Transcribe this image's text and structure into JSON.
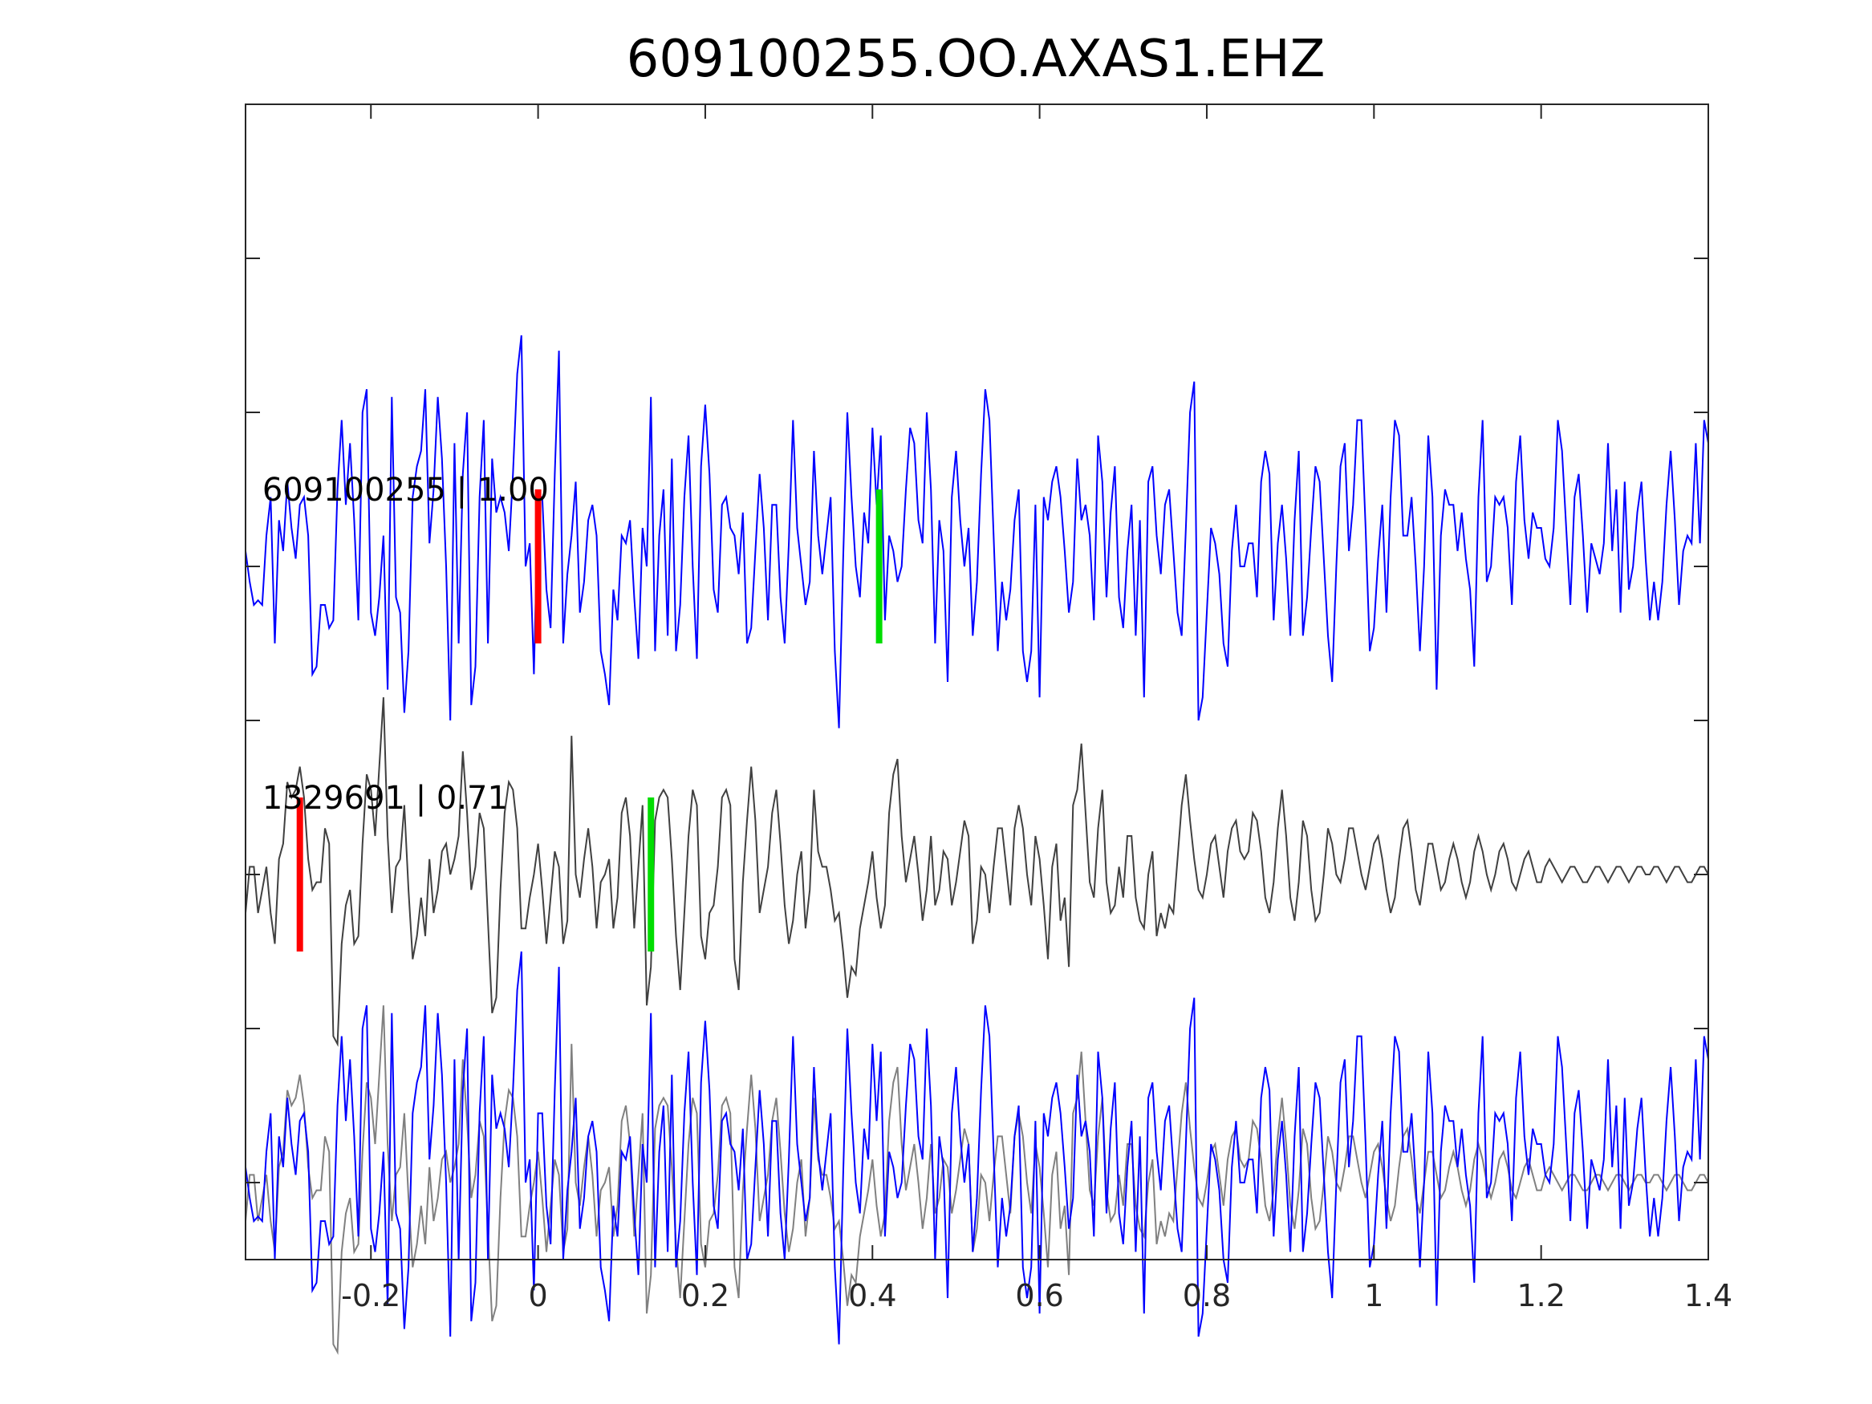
{
  "chart_data": {
    "type": "line",
    "title": "609100255.OO.AXAS1.EHZ",
    "xlabel": "",
    "ylabel": "",
    "xlim": [
      -0.35,
      1.4
    ],
    "ylim": [
      -4.5,
      3
    ],
    "x_ticks": [
      -0.2,
      0,
      0.2,
      0.4,
      0.6,
      0.8,
      1,
      1.2,
      1.4
    ],
    "x_tick_labels": [
      "-0.2",
      "0",
      "0.2",
      "0.4",
      "0.6",
      "0.8",
      "1",
      "1.2",
      "1.4"
    ],
    "y_ticks": [
      -4,
      -3,
      -2,
      -1,
      0,
      1,
      2
    ],
    "grid": false,
    "sample_interval": 0.005,
    "colors": {
      "template": "#0000ff",
      "match": "#404040",
      "overlay_match": "#808080",
      "p_pick": "#ff0000",
      "s_pick": "#00dd00",
      "axes": "#262626"
    },
    "annotations": [
      {
        "text": "609100255 | 1.00",
        "x": -0.33,
        "y": 0.5
      },
      {
        "text": "1329691 | 0.71",
        "x": -0.33,
        "y": -1.5
      }
    ],
    "picks": [
      {
        "trace": "top",
        "phase": "P",
        "x": 0.0,
        "y0": -0.5,
        "y1": 0.5
      },
      {
        "trace": "top",
        "phase": "S",
        "x": 0.408,
        "y0": -0.5,
        "y1": 0.5
      },
      {
        "trace": "middle",
        "phase": "P",
        "x": -0.285,
        "y0": -2.5,
        "y1": -1.5
      },
      {
        "trace": "middle",
        "phase": "S",
        "x": 0.135,
        "y0": -2.5,
        "y1": -1.5
      }
    ],
    "series": [
      {
        "key": "top",
        "offset": 0,
        "x_start": -0.35,
        "values": [
          0.1,
          -0.1,
          -0.25,
          -0.22,
          -0.25,
          0.2,
          0.45,
          -0.5,
          0.3,
          0.1,
          0.55,
          0.25,
          0.05,
          0.4,
          0.45,
          0.2,
          -0.7,
          -0.65,
          -0.25,
          -0.25,
          -0.4,
          -0.35,
          0.5,
          0.95,
          0.4,
          0.8,
          0.3,
          -0.35,
          1.0,
          1.15,
          -0.3,
          -0.45,
          -0.2,
          0.2,
          -0.8,
          1.1,
          -0.2,
          -0.3,
          -0.95,
          -0.55,
          0.45,
          0.65,
          0.75,
          1.15,
          0.15,
          0.5,
          1.1,
          0.7,
          0.0,
          -1.0,
          0.8,
          -0.5,
          0.6,
          1.0,
          -0.9,
          -0.65,
          0.45,
          0.95,
          -0.5,
          0.7,
          0.35,
          0.45,
          0.35,
          0.1,
          0.6,
          1.25,
          1.5,
          0.0,
          0.15,
          -0.7,
          0.45,
          0.45,
          -0.15,
          -0.4,
          0.6,
          1.4,
          -0.5,
          -0.05,
          0.2,
          0.55,
          -0.3,
          -0.1,
          0.3,
          0.4,
          0.2,
          -0.55,
          -0.7,
          -0.9,
          -0.15,
          -0.35,
          0.2,
          0.15,
          0.3,
          -0.2,
          -0.6,
          0.25,
          0.0,
          1.1,
          -0.55,
          0.2,
          0.5,
          -0.45,
          0.7,
          -0.55,
          -0.25,
          0.45,
          0.85,
          0.0,
          -0.6,
          0.65,
          1.05,
          0.6,
          -0.15,
          -0.3,
          0.4,
          0.45,
          0.25,
          0.2,
          -0.05,
          0.35,
          -0.5,
          -0.4,
          0.1,
          0.6,
          0.25,
          -0.35,
          0.4,
          0.4,
          -0.2,
          -0.5,
          0.15,
          0.95,
          0.25,
          0.0,
          -0.25,
          -0.1,
          0.75,
          0.2,
          -0.05,
          0.2,
          0.45,
          -0.55,
          -1.05,
          0.05,
          1.0,
          0.45,
          0.0,
          -0.2,
          0.35,
          0.15,
          0.9,
          0.4,
          0.85,
          -0.35,
          0.2,
          0.1,
          -0.1,
          0.0,
          0.5,
          0.9,
          0.8,
          0.3,
          0.15,
          1.0,
          0.5,
          -0.5,
          0.3,
          0.1,
          -0.75,
          0.45,
          0.75,
          0.3,
          0.0,
          0.25,
          -0.45,
          -0.1,
          0.6,
          1.15,
          0.95,
          0.2,
          -0.55,
          -0.1,
          -0.35,
          -0.15,
          0.3,
          0.5,
          -0.55,
          -0.75,
          -0.55,
          0.4,
          -0.85,
          0.45,
          0.3,
          0.55,
          0.65,
          0.45,
          0.1,
          -0.3,
          -0.1,
          0.7,
          0.3,
          0.4,
          0.2,
          -0.35,
          0.85,
          0.55,
          -0.2,
          0.35,
          0.65,
          -0.2,
          -0.4,
          0.1,
          0.4,
          -0.45,
          0.3,
          -0.85,
          0.55,
          0.65,
          0.2,
          -0.05,
          0.4,
          0.5,
          0.1,
          -0.3,
          -0.45,
          0.25,
          1.0,
          1.2,
          -1.0,
          -0.85,
          -0.3,
          0.25,
          0.15,
          -0.05,
          -0.5,
          -0.65,
          0.1,
          0.4,
          0.0,
          0.0,
          0.15,
          0.15,
          -0.2,
          0.55,
          0.75,
          0.6,
          -0.35,
          0.15,
          0.4,
          0.05,
          -0.45,
          0.3,
          0.75,
          -0.45,
          -0.2,
          0.25,
          0.65,
          0.55,
          0.05,
          -0.45,
          -0.75,
          0.0,
          0.65,
          0.8,
          0.1,
          0.4,
          0.95,
          0.95,
          0.25,
          -0.55,
          -0.4,
          0.05,
          0.4,
          -0.3,
          0.45,
          0.95,
          0.85,
          0.2,
          0.2,
          0.45,
          0.0,
          -0.55,
          0.0,
          0.85,
          0.45,
          -0.8,
          0.2,
          0.5,
          0.4,
          0.4,
          0.1,
          0.35,
          0.05,
          -0.15,
          -0.65,
          0.45,
          0.95,
          -0.1,
          0.0,
          0.45,
          0.4,
          0.45,
          0.25,
          -0.25,
          0.55,
          0.85,
          0.3,
          0.05,
          0.35,
          0.25,
          0.25,
          0.05,
          0.0,
          0.25,
          0.95,
          0.75,
          0.25,
          -0.25,
          0.45,
          0.6,
          0.2,
          -0.3,
          0.15,
          0.05,
          -0.05,
          0.15,
          0.8,
          0.1,
          0.5,
          -0.3,
          0.55,
          -0.15,
          0.0,
          0.35,
          0.55,
          0.05,
          -0.35,
          -0.1,
          -0.35,
          -0.1,
          0.4,
          0.75,
          0.3,
          -0.25,
          0.1,
          0.2,
          0.15,
          0.8,
          0.15,
          0.95,
          0.8,
          0.3,
          -0.1,
          0.05,
          0.5,
          0.7,
          0.7,
          0.45,
          0.55,
          0.0,
          -0.1,
          0.1,
          0.05,
          -0.15,
          0.4,
          0.55,
          0.05,
          0.0,
          0.1,
          -0.35,
          0.3,
          0.3,
          0.3,
          0.3,
          0.1,
          -0.2,
          0.0,
          0.05,
          0.15,
          0.35,
          0.1,
          0.5
        ]
      },
      {
        "key": "middle",
        "offset": -2,
        "x_start": -0.35,
        "values": [
          -0.25,
          0.05,
          0.05,
          -0.25,
          -0.1,
          0.05,
          -0.25,
          -0.45,
          0.1,
          0.2,
          0.6,
          0.5,
          0.55,
          0.7,
          0.5,
          0.1,
          -0.1,
          -0.05,
          -0.05,
          0.3,
          0.2,
          -1.05,
          -1.1,
          -0.45,
          -0.2,
          -0.1,
          -0.45,
          -0.4,
          0.2,
          0.65,
          0.55,
          0.25,
          0.7,
          1.15,
          0.25,
          -0.25,
          0.05,
          0.1,
          0.45,
          -0.1,
          -0.55,
          -0.4,
          -0.15,
          -0.4,
          0.1,
          -0.25,
          -0.1,
          0.15,
          0.2,
          0.0,
          0.1,
          0.25,
          0.8,
          0.4,
          -0.1,
          0.05,
          0.4,
          0.3,
          -0.3,
          -0.9,
          -0.8,
          -0.1,
          0.4,
          0.6,
          0.55,
          0.3,
          -0.35,
          -0.35,
          -0.15,
          0.0,
          0.2,
          -0.1,
          -0.45,
          -0.15,
          0.15,
          0.05,
          -0.45,
          -0.3,
          0.9,
          0.0,
          -0.15,
          0.1,
          0.3,
          0.05,
          -0.35,
          -0.05,
          0.0,
          0.1,
          -0.35,
          -0.15,
          0.4,
          0.5,
          0.25,
          -0.35,
          0.05,
          0.45,
          -0.85,
          -0.6,
          0.35,
          0.5,
          0.55,
          0.5,
          0.1,
          -0.4,
          -0.75,
          -0.25,
          0.25,
          0.55,
          0.45,
          -0.4,
          -0.55,
          -0.25,
          -0.2,
          0.05,
          0.5,
          0.55,
          0.45,
          -0.55,
          -0.75,
          -0.05,
          0.35,
          0.7,
          0.35,
          -0.25,
          -0.1,
          0.05,
          0.4,
          0.55,
          0.2,
          -0.2,
          -0.45,
          -0.3,
          0.0,
          0.15,
          -0.35,
          -0.1,
          0.55,
          0.15,
          0.05,
          0.05,
          -0.1,
          -0.3,
          -0.25,
          -0.5,
          -0.8,
          -0.6,
          -0.65,
          -0.35,
          -0.2,
          -0.05,
          0.15,
          -0.15,
          -0.35,
          -0.2,
          0.4,
          0.65,
          0.75,
          0.25,
          -0.05,
          0.1,
          0.25,
          0.0,
          -0.3,
          -0.1,
          0.25,
          -0.2,
          -0.1,
          0.15,
          0.1,
          -0.2,
          -0.05,
          0.15,
          0.35,
          0.25,
          -0.45,
          -0.3,
          0.05,
          0.0,
          -0.25,
          0.05,
          0.3,
          0.3,
          0.05,
          -0.2,
          0.3,
          0.45,
          0.3,
          0.0,
          -0.2,
          0.25,
          0.1,
          -0.2,
          -0.55,
          0.05,
          0.2,
          -0.3,
          -0.15,
          -0.6,
          0.45,
          0.55,
          0.85,
          0.4,
          -0.05,
          -0.15,
          0.3,
          0.55,
          -0.05,
          -0.25,
          -0.2,
          0.05,
          -0.15,
          0.25,
          0.25,
          -0.15,
          -0.3,
          -0.35,
          0.0,
          0.15,
          -0.4,
          -0.25,
          -0.35,
          -0.2,
          -0.25,
          0.1,
          0.45,
          0.65,
          0.35,
          0.1,
          -0.1,
          -0.15,
          0.0,
          0.2,
          0.25,
          0.05,
          -0.15,
          0.15,
          0.3,
          0.35,
          0.15,
          0.1,
          0.15,
          0.4,
          0.35,
          0.15,
          -0.15,
          -0.25,
          -0.05,
          0.3,
          0.55,
          0.25,
          -0.15,
          -0.3,
          -0.05,
          0.35,
          0.25,
          -0.1,
          -0.3,
          -0.25,
          0.0,
          0.3,
          0.2,
          0.0,
          -0.05,
          0.1,
          0.3,
          0.3,
          0.15,
          0.0,
          -0.1,
          0.05,
          0.2,
          0.25,
          0.1,
          -0.1,
          -0.25,
          -0.15,
          0.1,
          0.3,
          0.35,
          0.15,
          -0.1,
          -0.2,
          0.0,
          0.2,
          0.2,
          0.05,
          -0.1,
          -0.05,
          0.1,
          0.2,
          0.1,
          -0.05,
          -0.15,
          -0.05,
          0.15,
          0.25,
          0.15,
          0.0,
          -0.1,
          0.0,
          0.15,
          0.2,
          0.1,
          -0.05,
          -0.1,
          0.0,
          0.1,
          0.15,
          0.05,
          -0.05,
          -0.05,
          0.05,
          0.1,
          0.05,
          0.0,
          -0.05,
          0.0,
          0.05,
          0.05,
          0.0,
          -0.05,
          -0.05,
          0.0,
          0.05,
          0.05,
          0.0,
          -0.05,
          0.0,
          0.05,
          0.05,
          0.0,
          -0.05,
          0.0,
          0.05,
          0.05,
          0.0,
          0.0,
          0.05,
          0.05,
          0.0,
          -0.05,
          0.0,
          0.05,
          0.05,
          0.0,
          -0.05,
          -0.05,
          0.0,
          0.05,
          0.05,
          0.0,
          -0.05,
          0.0
        ]
      }
    ],
    "overlay": {
      "offset": -4,
      "match_shift": 0.0,
      "template_shift": 0.0
    }
  }
}
